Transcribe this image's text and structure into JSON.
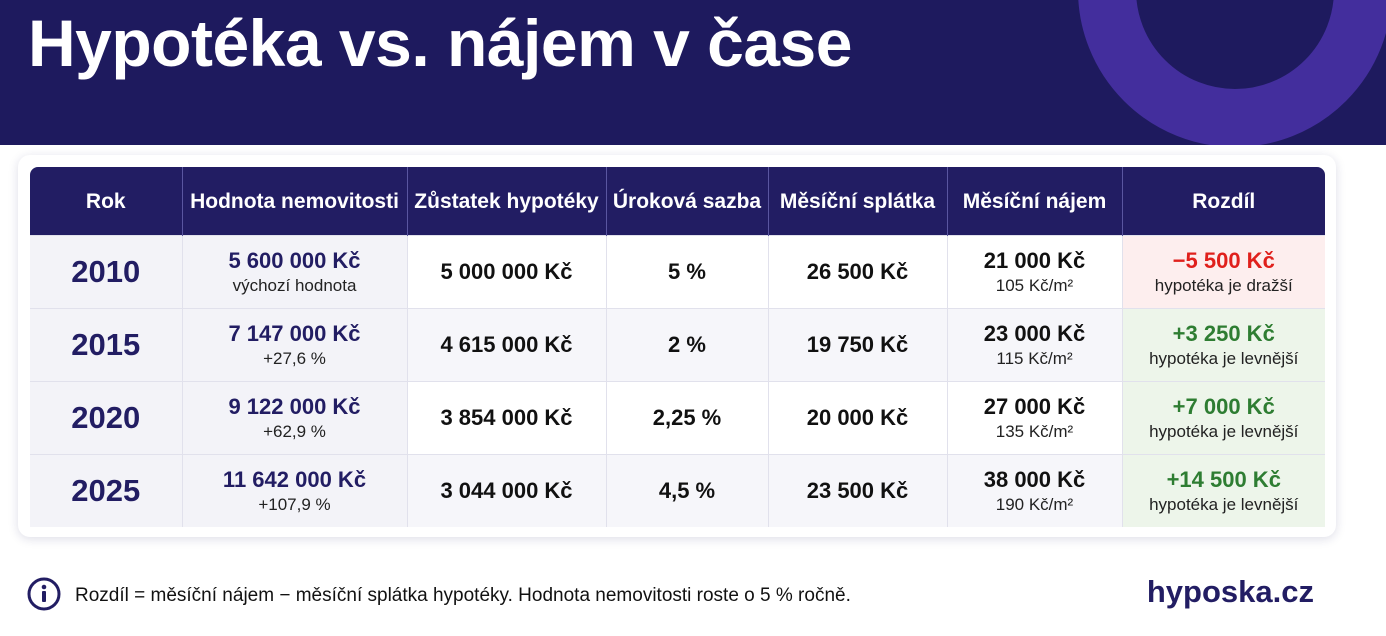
{
  "header": {
    "title": "Hypotéka vs. nájem v čase"
  },
  "table": {
    "columns": [
      "Rok",
      "Hodnota nemovitosti",
      "Zůstatek hypotéky",
      "Úroková sazba",
      "Měsíční splátka",
      "Měsíční nájem",
      "Rozdíl"
    ],
    "rows": [
      {
        "year": "2010",
        "value": {
          "main": "5 600 000 Kč",
          "sub": "výchozí hodnota"
        },
        "balance": "5 000 000 Kč",
        "rate": "5 %",
        "payment": "26 500 Kč",
        "rent": {
          "main": "21 000 Kč",
          "sub": "105 Kč/m²"
        },
        "diff": {
          "main": "−5 500 Kč",
          "sub": "hypotéka je dražší",
          "color": "#e0201c",
          "background": "#fdeeee"
        }
      },
      {
        "year": "2015",
        "value": {
          "main": "7 147 000 Kč",
          "sub": "+27,6 %"
        },
        "balance": "4 615 000 Kč",
        "rate": "2 %",
        "payment": "19 750 Kč",
        "rent": {
          "main": "23 000 Kč",
          "sub": "115 Kč/m²"
        },
        "diff": {
          "main": "+3 250 Kč",
          "sub": "hypotéka je levnější",
          "color": "#2e7d32",
          "background": "#edf5ea"
        }
      },
      {
        "year": "2020",
        "value": {
          "main": "9 122 000 Kč",
          "sub": "+62,9 %"
        },
        "balance": "3 854 000 Kč",
        "rate": "2,25 %",
        "payment": "20 000 Kč",
        "rent": {
          "main": "27 000 Kč",
          "sub": "135 Kč/m²"
        },
        "diff": {
          "main": "+7 000 Kč",
          "sub": "hypotéka je levnější",
          "color": "#2e7d32",
          "background": "#edf5ea"
        }
      },
      {
        "year": "2025",
        "value": {
          "main": "11 642 000 Kč",
          "sub": "+107,9 %"
        },
        "balance": "3 044 000 Kč",
        "rate": "4,5 %",
        "payment": "23 500 Kč",
        "rent": {
          "main": "38 000 Kč",
          "sub": "190 Kč/m²"
        },
        "diff": {
          "main": "+14 500 Kč",
          "sub": "hypotéka je levnější",
          "color": "#2e7d32",
          "background": "#edf5ea"
        }
      }
    ]
  },
  "footer": {
    "note": "Rozdíl = měsíční nájem − měsíční splátka hypotéky. Hodnota nemovitosti roste o 5 % ročně.",
    "brand": "hyposka.cz"
  }
}
